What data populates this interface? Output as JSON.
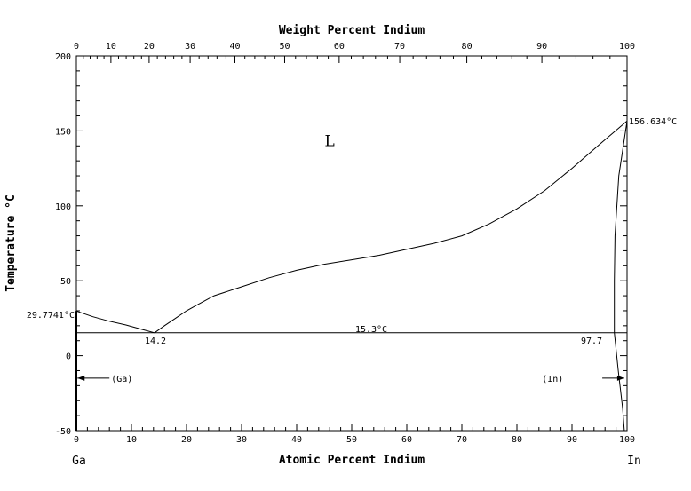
{
  "chart_data": {
    "type": "line",
    "title": "",
    "top_axis": {
      "label": "Weight Percent Indium",
      "ticks": [
        0,
        10,
        20,
        30,
        40,
        50,
        60,
        70,
        80,
        90,
        100
      ],
      "positions_at_percent_in": [
        0,
        6.27,
        13.21,
        20.66,
        28.79,
        37.82,
        47.72,
        58.72,
        70.9,
        84.53,
        100
      ]
    },
    "xaxis": {
      "label": "Atomic Percent Indium",
      "ticks": [
        0,
        10,
        20,
        30,
        40,
        50,
        60,
        70,
        80,
        90,
        100
      ],
      "range": [
        0,
        100
      ]
    },
    "yaxis": {
      "label": "Temperature °C",
      "ticks": [
        -50,
        0,
        50,
        100,
        150,
        200
      ],
      "range": [
        -50,
        200
      ]
    },
    "element_labels": {
      "left": "Ga",
      "right": "In"
    },
    "region_labels": [
      {
        "text": "L",
        "x": 46,
        "y": 140
      },
      {
        "text": "(Ga)",
        "x": 6,
        "y": -15
      },
      {
        "text": "(In)",
        "x": 91,
        "y": -15
      }
    ],
    "annotations": {
      "ga_melting": "29.7741°C",
      "in_melting": "156.634°C",
      "eutectic_temp": "15.3°C",
      "eutectic_comp": "14.2",
      "in_solvus": "97.7"
    },
    "series": [
      {
        "id": "liquidus_ga_side",
        "points": [
          [
            0,
            29.77
          ],
          [
            3,
            26
          ],
          [
            6,
            23
          ],
          [
            9,
            20.5
          ],
          [
            12,
            17.5
          ],
          [
            14.2,
            15.3
          ]
        ]
      },
      {
        "id": "liquidus_in_side",
        "points": [
          [
            14.2,
            15.3
          ],
          [
            16,
            20
          ],
          [
            18,
            25
          ],
          [
            20,
            30
          ],
          [
            22,
            34
          ],
          [
            25,
            40
          ],
          [
            30,
            46
          ],
          [
            35,
            52
          ],
          [
            40,
            57
          ],
          [
            45,
            61
          ],
          [
            50,
            64
          ],
          [
            55,
            67
          ],
          [
            60,
            71
          ],
          [
            65,
            75
          ],
          [
            70,
            80
          ],
          [
            75,
            88
          ],
          [
            80,
            98
          ],
          [
            85,
            110
          ],
          [
            90,
            125
          ],
          [
            95,
            141
          ],
          [
            100,
            156.634
          ]
        ]
      },
      {
        "id": "eutectic_isotherm",
        "points": [
          [
            0,
            15.3
          ],
          [
            100,
            15.3
          ]
        ]
      },
      {
        "id": "in_solidus",
        "points": [
          [
            100,
            156.634
          ],
          [
            98.5,
            120
          ],
          [
            97.8,
            80
          ],
          [
            97.7,
            50
          ],
          [
            97.7,
            15.3
          ]
        ]
      },
      {
        "id": "in_solvus",
        "points": [
          [
            97.7,
            15.3
          ],
          [
            98.4,
            -10
          ],
          [
            99.2,
            -35
          ],
          [
            99.5,
            -50
          ]
        ]
      },
      {
        "id": "ga_solvus",
        "points": [
          [
            0,
            29.77
          ],
          [
            0,
            -50
          ]
        ]
      }
    ],
    "arrows": [
      {
        "from": [
          6,
          -15
        ],
        "to": [
          0.2,
          -15
        ]
      },
      {
        "from": [
          95.5,
          -15
        ],
        "to": [
          99.5,
          -15
        ]
      }
    ]
  }
}
